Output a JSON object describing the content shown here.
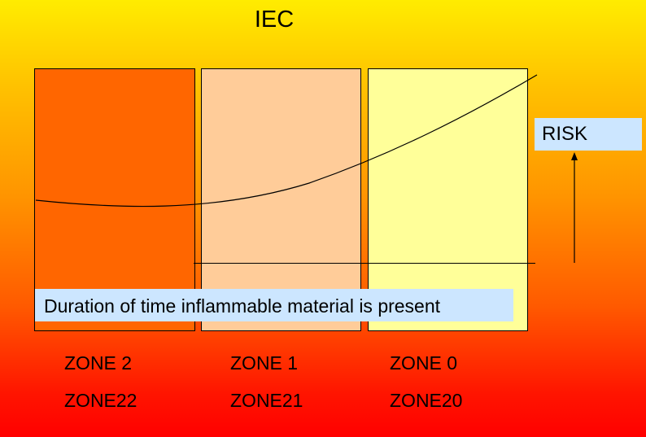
{
  "title": "IEC",
  "risk_label": "RISK",
  "duration_label": "Duration of time inflammable material is present",
  "zones": [
    {
      "gas_zone": "ZONE 2",
      "dust_zone": "ZONE22",
      "color": "#ff6600"
    },
    {
      "gas_zone": "ZONE 1",
      "dust_zone": "ZONE21",
      "color": "#ffcc99"
    },
    {
      "gas_zone": "ZONE 0",
      "dust_zone": "ZONE20",
      "color": "#ffff99"
    }
  ],
  "colors": {
    "background_top": "#ffec00",
    "background_bottom": "#ff0000",
    "label_box": "#cce6ff"
  }
}
